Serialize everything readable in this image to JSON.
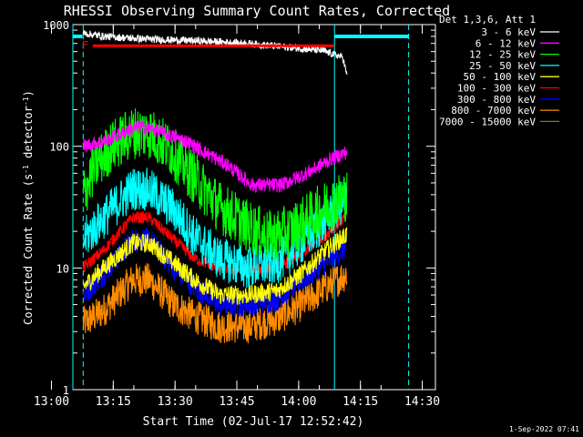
{
  "chart_data": {
    "type": "line",
    "title": "RHESSI Observing Summary Count Rates, Corrected",
    "xlabel": "Start Time (02-Jul-17 12:52:42)",
    "ylabel": "Corrected Count Rate (s",
    "ylabel_sup": "-1",
    "ylabel_tail": " detector",
    "ylabel_close": ")",
    "yscale": "log",
    "xlim_minutes": [
      12.5,
      100.5
    ],
    "ylim": [
      1,
      1000
    ],
    "x_ticks": [
      {
        "label": "13:00",
        "m": 7.3
      },
      {
        "label": "13:15",
        "m": 22.3
      },
      {
        "label": "13:30",
        "m": 37.3
      },
      {
        "label": "13:45",
        "m": 52.3
      },
      {
        "label": "14:00",
        "m": 67.3
      },
      {
        "label": "14:15",
        "m": 82.3
      },
      {
        "label": "14:30",
        "m": 97.3
      }
    ],
    "y_ticks": [
      {
        "label": "1",
        "v": 1
      },
      {
        "label": "10",
        "v": 10
      },
      {
        "label": "100",
        "v": 100
      },
      {
        "label": "1000",
        "v": 1000
      }
    ],
    "legend_header": "Det 1,3,6, Att 1",
    "series": [
      {
        "name": "3 - 6 keV",
        "color": "#ffffff",
        "noise": 0.03,
        "points": [
          [
            15,
            850
          ],
          [
            20,
            800
          ],
          [
            30,
            760
          ],
          [
            45,
            730
          ],
          [
            55,
            700
          ],
          [
            65,
            650
          ],
          [
            73,
            610
          ],
          [
            78,
            540
          ],
          [
            79,
            380
          ]
        ]
      },
      {
        "name": "6 - 12 keV",
        "color": "#ff00ff",
        "noise": 0.06,
        "points": [
          [
            15,
            100
          ],
          [
            20,
            110
          ],
          [
            27,
            140
          ],
          [
            30,
            145
          ],
          [
            40,
            110
          ],
          [
            50,
            70
          ],
          [
            56,
            48
          ],
          [
            63,
            48
          ],
          [
            70,
            62
          ],
          [
            75,
            78
          ],
          [
            79,
            90
          ]
        ]
      },
      {
        "name": "12 - 25 keV",
        "color": "#00ff00",
        "noise": 0.22,
        "points": [
          [
            15,
            40
          ],
          [
            18,
            70
          ],
          [
            22,
            100
          ],
          [
            27,
            130
          ],
          [
            31,
            130
          ],
          [
            36,
            95
          ],
          [
            42,
            55
          ],
          [
            48,
            32
          ],
          [
            55,
            22
          ],
          [
            60,
            18
          ],
          [
            65,
            20
          ],
          [
            70,
            26
          ],
          [
            75,
            34
          ],
          [
            79,
            40
          ]
        ]
      },
      {
        "name": "25 - 50 keV",
        "color": "#00ffff",
        "noise": 0.18,
        "points": [
          [
            15,
            17
          ],
          [
            20,
            26
          ],
          [
            27,
            45
          ],
          [
            31,
            44
          ],
          [
            37,
            30
          ],
          [
            42,
            18
          ],
          [
            48,
            12
          ],
          [
            55,
            10
          ],
          [
            62,
            11
          ],
          [
            68,
            16
          ],
          [
            74,
            25
          ],
          [
            79,
            38
          ]
        ]
      },
      {
        "name": "50 - 100 keV",
        "color": "#ffff00",
        "noise": 0.08,
        "points": [
          [
            15,
            7
          ],
          [
            20,
            10
          ],
          [
            27,
            16
          ],
          [
            31,
            16
          ],
          [
            37,
            11
          ],
          [
            42,
            8
          ],
          [
            48,
            6
          ],
          [
            55,
            6
          ],
          [
            62,
            6.5
          ],
          [
            68,
            9
          ],
          [
            74,
            14
          ],
          [
            79,
            19
          ]
        ]
      },
      {
        "name": "100 - 300 keV",
        "color": "#ff0000",
        "noise": 0.05,
        "points": [
          [
            15,
            10
          ],
          [
            20,
            14
          ],
          [
            27,
            26
          ],
          [
            31,
            26
          ],
          [
            37,
            17
          ],
          [
            42,
            12
          ],
          [
            48,
            10
          ],
          [
            55,
            9.5
          ],
          [
            62,
            10
          ],
          [
            68,
            13
          ],
          [
            74,
            19
          ],
          [
            78,
            25
          ],
          [
            79,
            27
          ]
        ]
      },
      {
        "name": "300 - 800 keV",
        "color": "#0000ff",
        "noise": 0.1,
        "points": [
          [
            15,
            6
          ],
          [
            20,
            9
          ],
          [
            27,
            17
          ],
          [
            31,
            17
          ],
          [
            37,
            10
          ],
          [
            42,
            7
          ],
          [
            48,
            5
          ],
          [
            55,
            5
          ],
          [
            62,
            5.5
          ],
          [
            68,
            8
          ],
          [
            74,
            11
          ],
          [
            79,
            15
          ]
        ]
      },
      {
        "name": "800 - 7000 keV",
        "color": "#ff8c00",
        "noise": 0.14,
        "points": [
          [
            15,
            3.5
          ],
          [
            20,
            4.5
          ],
          [
            27,
            8
          ],
          [
            31,
            8
          ],
          [
            37,
            5
          ],
          [
            42,
            4
          ],
          [
            48,
            3.3
          ],
          [
            55,
            3.3
          ],
          [
            62,
            3.8
          ],
          [
            68,
            5
          ],
          [
            74,
            7
          ],
          [
            79,
            9
          ]
        ]
      },
      {
        "name": "7000 - 15000 keV",
        "color": "#808000",
        "noise": 0.0,
        "points": []
      }
    ],
    "flare_marker": {
      "label": "F",
      "color": "#ff0000",
      "value": 670,
      "start": 17.3,
      "end": 75.8
    },
    "attenuator_bars": [
      {
        "color": "#00ffff",
        "value": 800,
        "start": 12.5,
        "end": 14.8
      },
      {
        "color": "#00ffff",
        "value": 800,
        "start": 76,
        "end": 94
      }
    ],
    "night_lines": [
      {
        "m": 12.5,
        "style": "solid"
      },
      {
        "m": 15,
        "style": "dashed"
      },
      {
        "m": 76,
        "style": "solid"
      },
      {
        "m": 94,
        "style": "dashed"
      }
    ]
  },
  "footer": {
    "date": "1-Sep-2022 07:41"
  }
}
